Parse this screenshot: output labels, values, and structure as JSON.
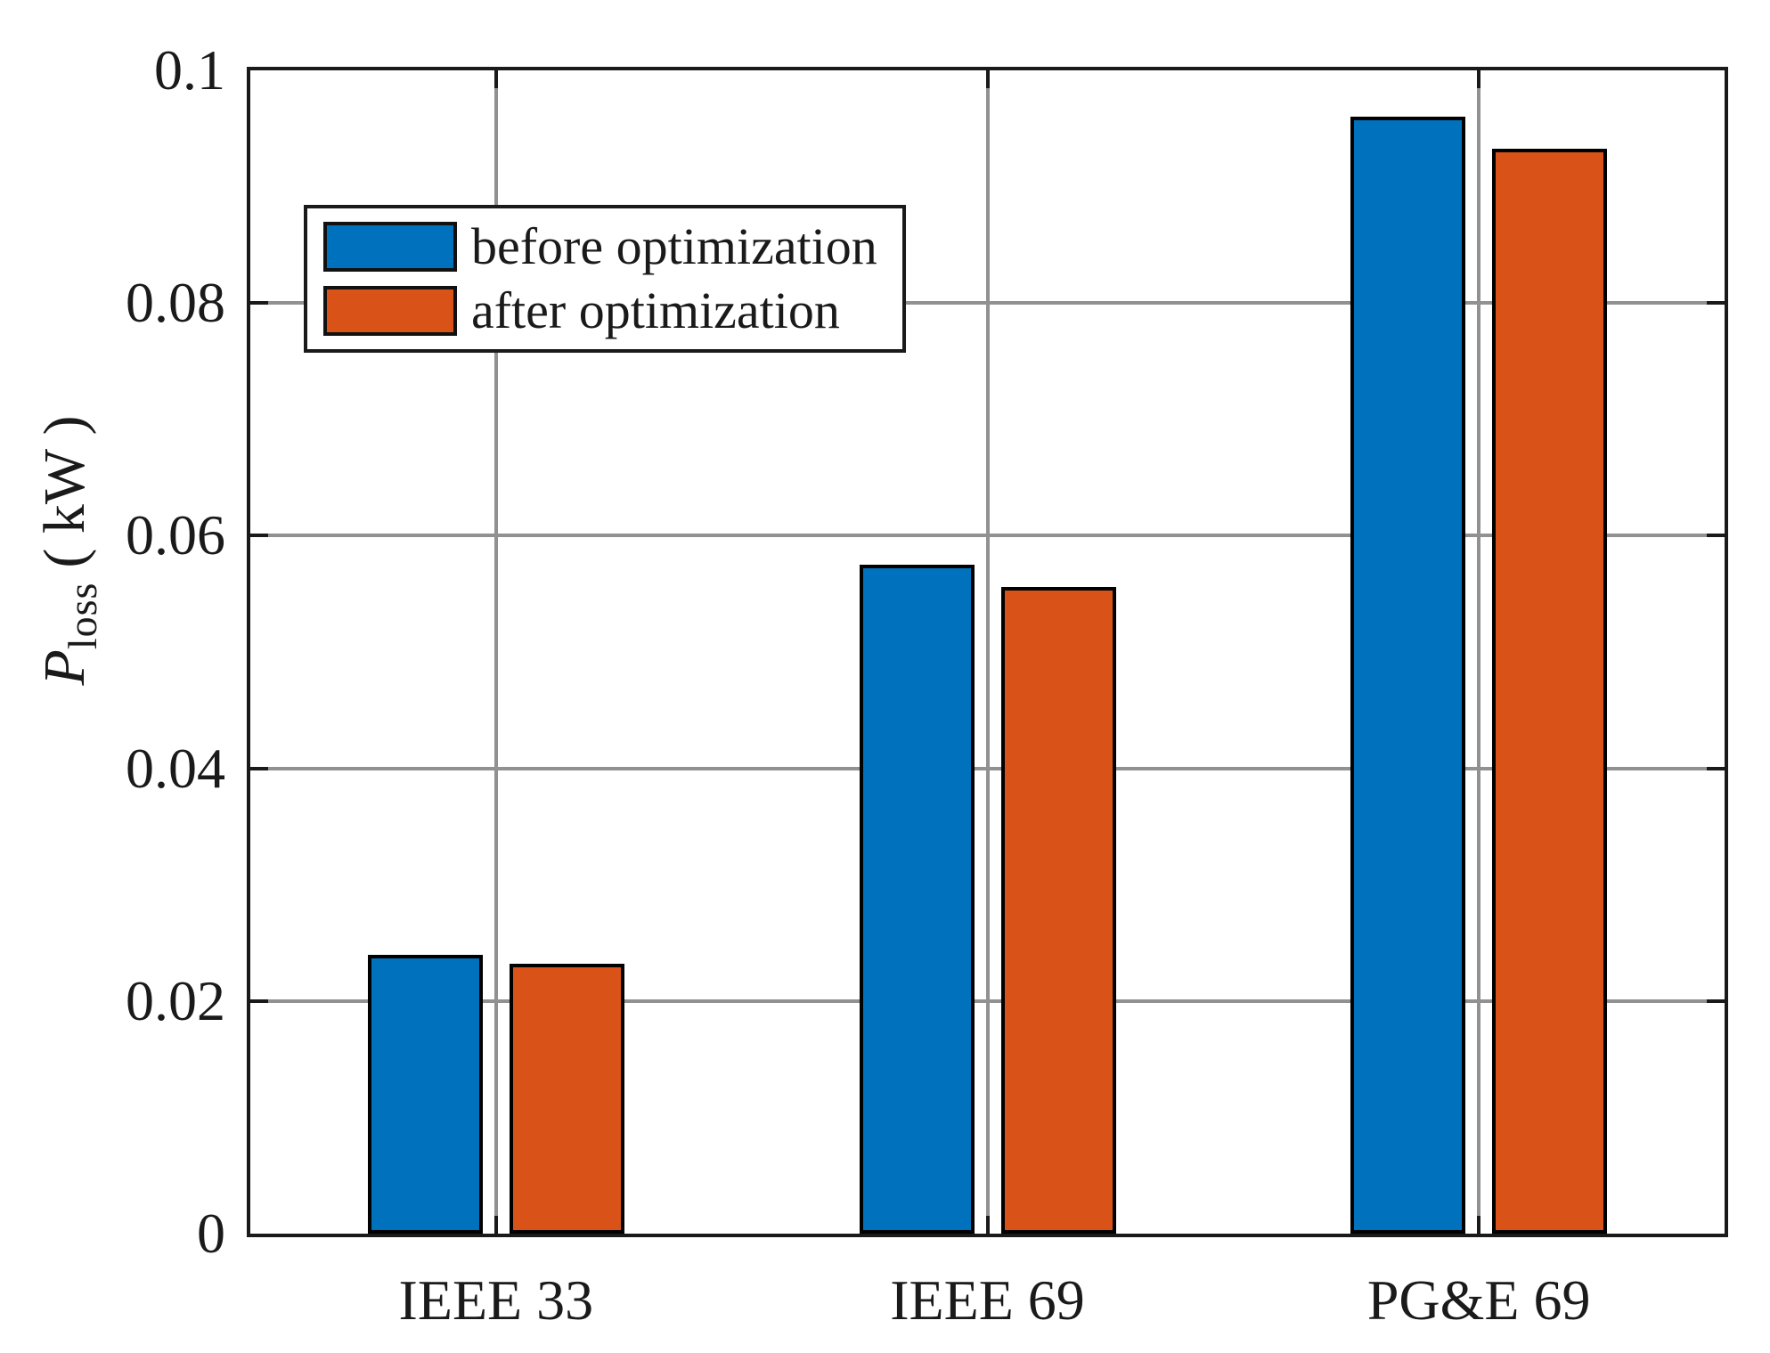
{
  "chart_data": {
    "type": "bar",
    "title": "",
    "categories": [
      "IEEE 33",
      "IEEE 69",
      "PG&E 69"
    ],
    "series": [
      {
        "name": "before optimization",
        "color": "#0072BD",
        "values": [
          0.024,
          0.0575,
          0.096
        ]
      },
      {
        "name": "after optimization",
        "color": "#D95319",
        "values": [
          0.0232,
          0.0556,
          0.0933
        ]
      }
    ],
    "ylabel": {
      "symbol": "P",
      "subscript": "loss",
      "unit": "( kW )"
    },
    "xlabel": "",
    "ylim": [
      0,
      0.1
    ],
    "yticks": [
      0,
      0.02,
      0.04,
      0.06,
      0.08,
      0.1
    ],
    "ytick_labels": [
      "0",
      "0.02",
      "0.04",
      "0.06",
      "0.08",
      "0.1"
    ],
    "grid": true,
    "legend": {
      "position": "upper-left"
    },
    "colors": {
      "axis": "#1a1a1a",
      "grid": "#919191",
      "background": "#ffffff",
      "bar_edge": "#000000"
    }
  }
}
